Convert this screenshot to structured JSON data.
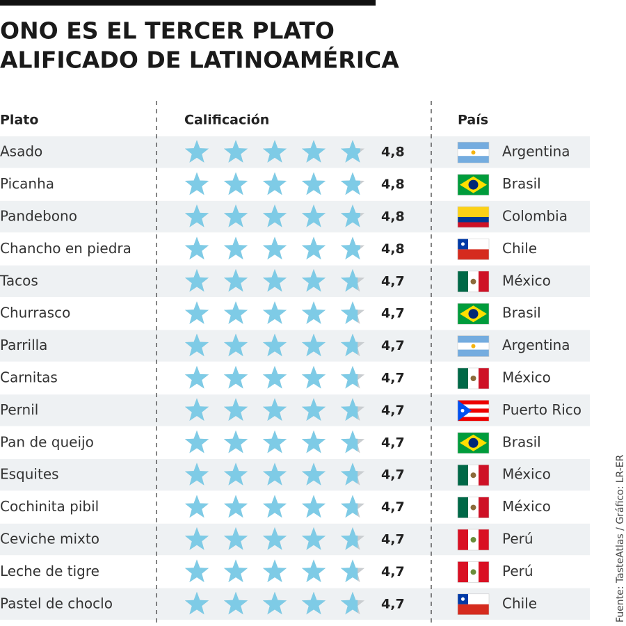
{
  "header": {
    "title_lines": [
      "ONO ES EL TERCER PLATO",
      "ALIFICADO DE LATINOAMÉRICA"
    ]
  },
  "table": {
    "columns": [
      "Plato",
      "Calificación",
      "País"
    ],
    "rows": [
      {
        "dish": "Asado",
        "rating": {
          "value": 4.8,
          "label": "4,8"
        },
        "country": "Argentina"
      },
      {
        "dish": "Picanha",
        "rating": {
          "value": 4.8,
          "label": "4,8"
        },
        "country": "Brasil"
      },
      {
        "dish": "Pandebono",
        "rating": {
          "value": 4.8,
          "label": "4,8"
        },
        "country": "Colombia"
      },
      {
        "dish": "Chancho en piedra",
        "rating": {
          "value": 4.8,
          "label": "4,8"
        },
        "country": "Chile"
      },
      {
        "dish": "Tacos",
        "rating": {
          "value": 4.7,
          "label": "4,7"
        },
        "country": "México"
      },
      {
        "dish": "Churrasco",
        "rating": {
          "value": 4.7,
          "label": "4,7"
        },
        "country": "Brasil"
      },
      {
        "dish": "Parrilla",
        "rating": {
          "value": 4.7,
          "label": "4,7"
        },
        "country": "Argentina"
      },
      {
        "dish": "Carnitas",
        "rating": {
          "value": 4.7,
          "label": "4,7"
        },
        "country": "México"
      },
      {
        "dish": "Pernil",
        "rating": {
          "value": 4.7,
          "label": "4,7"
        },
        "country": "Puerto Rico"
      },
      {
        "dish": "Pan de queijo",
        "rating": {
          "value": 4.7,
          "label": "4,7"
        },
        "country": "Brasil"
      },
      {
        "dish": "Esquites",
        "rating": {
          "value": 4.7,
          "label": "4,7"
        },
        "country": "México"
      },
      {
        "dish": "Cochinita pibil",
        "rating": {
          "value": 4.7,
          "label": "4,7"
        },
        "country": "México"
      },
      {
        "dish": "Ceviche mixto",
        "rating": {
          "value": 4.7,
          "label": "4,7"
        },
        "country": "Perú"
      },
      {
        "dish": "Leche de tigre",
        "rating": {
          "value": 4.7,
          "label": "4,7"
        },
        "country": "Perú"
      },
      {
        "dish": "Pastel de choclo",
        "rating": {
          "value": 4.7,
          "label": "4,7"
        },
        "country": "Chile"
      }
    ]
  },
  "source": "Fuente: TasteAtlas  / Gráfico: LR-ER"
}
